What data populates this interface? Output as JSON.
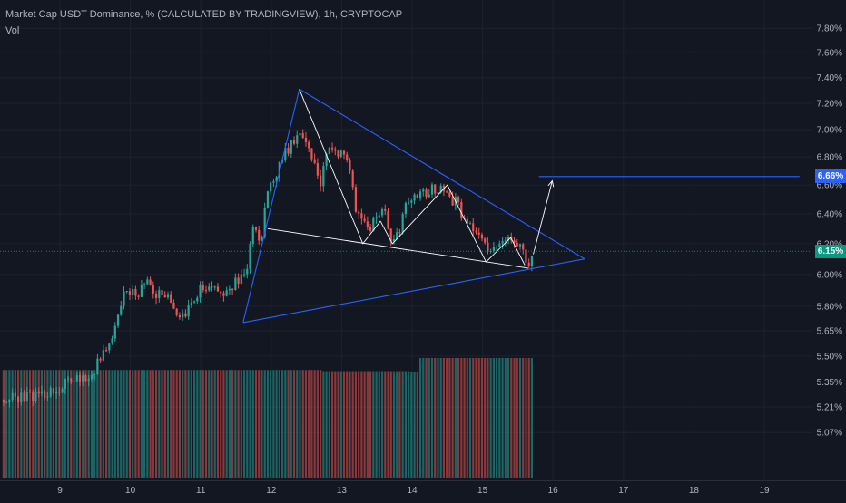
{
  "header": {
    "symbol_line": "Market Cap USDT Dominance, % (CALCULATED BY TRADINGVIEW), 1h, CRYPTOCAP",
    "volume_label": "Vol"
  },
  "price_tags": {
    "target": {
      "label": "6.66%",
      "color": "#2962ff"
    },
    "last": {
      "label": "6.15%",
      "color": "#089981"
    }
  },
  "colors": {
    "background": "#131722",
    "grid": "#1e222d",
    "up": "#26a69a",
    "down": "#ef5350",
    "trend_lines": "#2962ff",
    "pattern_lines": "#ffffff"
  },
  "chart_data": {
    "type": "candlestick",
    "title": "Market Cap USDT Dominance, % (CALCULATED BY TRADINGVIEW), 1h, CRYPTOCAP",
    "y_axis": {
      "unit": "%",
      "scale": "log",
      "range": [
        4.95,
        7.9
      ],
      "tick_labels": [
        "7.80%",
        "7.60%",
        "7.40%",
        "7.20%",
        "7.00%",
        "6.80%",
        "6.60%",
        "6.40%",
        "6.20%",
        "6.00%",
        "5.80%",
        "5.65%",
        "5.50%",
        "5.35%",
        "5.21%",
        "5.07%"
      ]
    },
    "x_axis": {
      "tick_labels": [
        "9",
        "10",
        "11",
        "12",
        "13",
        "14",
        "15",
        "16",
        "17",
        "18",
        "19"
      ],
      "range_days": [
        8.2,
        19.5
      ]
    },
    "price_path": [
      [
        8.2,
        5.25
      ],
      [
        8.4,
        5.26
      ],
      [
        8.6,
        5.27
      ],
      [
        8.8,
        5.29
      ],
      [
        9.0,
        5.31
      ],
      [
        9.2,
        5.38
      ],
      [
        9.4,
        5.36
      ],
      [
        9.6,
        5.5
      ],
      [
        9.75,
        5.62
      ],
      [
        9.9,
        5.86
      ],
      [
        10.1,
        5.88
      ],
      [
        10.25,
        5.96
      ],
      [
        10.35,
        5.82
      ],
      [
        10.45,
        5.9
      ],
      [
        10.6,
        5.8
      ],
      [
        10.75,
        5.72
      ],
      [
        10.9,
        5.84
      ],
      [
        11.0,
        5.92
      ],
      [
        11.15,
        5.9
      ],
      [
        11.35,
        5.88
      ],
      [
        11.5,
        5.95
      ],
      [
        11.65,
        6.0
      ],
      [
        11.75,
        6.36
      ],
      [
        11.85,
        6.21
      ],
      [
        11.95,
        6.56
      ],
      [
        12.05,
        6.63
      ],
      [
        12.15,
        6.8
      ],
      [
        12.3,
        6.9
      ],
      [
        12.4,
        7.02
      ],
      [
        12.55,
        6.85
      ],
      [
        12.7,
        6.61
      ],
      [
        12.8,
        6.88
      ],
      [
        12.9,
        6.82
      ],
      [
        13.05,
        6.86
      ],
      [
        13.2,
        6.44
      ],
      [
        13.3,
        6.36
      ],
      [
        13.4,
        6.3
      ],
      [
        13.5,
        6.37
      ],
      [
        13.6,
        6.42
      ],
      [
        13.7,
        6.24
      ],
      [
        13.8,
        6.27
      ],
      [
        13.95,
        6.5
      ],
      [
        14.1,
        6.52
      ],
      [
        14.25,
        6.56
      ],
      [
        14.45,
        6.59
      ],
      [
        14.55,
        6.5
      ],
      [
        14.65,
        6.47
      ],
      [
        14.75,
        6.34
      ],
      [
        14.9,
        6.27
      ],
      [
        15.0,
        6.21
      ],
      [
        15.1,
        6.16
      ],
      [
        15.2,
        6.18
      ],
      [
        15.3,
        6.25
      ],
      [
        15.4,
        6.23
      ],
      [
        15.5,
        6.22
      ],
      [
        15.6,
        6.1
      ],
      [
        15.67,
        6.08
      ],
      [
        15.72,
        6.15
      ]
    ],
    "volume": {
      "segments": [
        {
          "from_day": 8.2,
          "to_day": 12.7,
          "level": 0.9
        },
        {
          "from_day": 12.7,
          "to_day": 13.95,
          "level": 0.89
        },
        {
          "from_day": 13.95,
          "to_day": 14.1,
          "level": 0.88
        },
        {
          "from_day": 14.1,
          "to_day": 15.72,
          "level": 1.0
        }
      ]
    },
    "drawings": {
      "blue_upper_trendline": [
        [
          12.4,
          7.31
        ],
        [
          16.45,
          6.1
        ]
      ],
      "blue_lower_trendline": [
        [
          11.6,
          5.7
        ],
        [
          16.45,
          6.1
        ]
      ],
      "blue_left_edge": [
        [
          11.6,
          5.7
        ],
        [
          12.4,
          7.31
        ]
      ],
      "blue_target_line": {
        "from_day": 15.8,
        "to_day": 19.5,
        "price": 6.66
      },
      "white_lower_line": [
        [
          11.95,
          6.3
        ],
        [
          15.65,
          6.04
        ]
      ],
      "white_zigzag": [
        [
          12.4,
          7.31
        ],
        [
          13.3,
          6.2
        ],
        [
          13.55,
          6.35
        ],
        [
          13.72,
          6.2
        ],
        [
          14.5,
          6.6
        ],
        [
          15.05,
          6.08
        ],
        [
          15.4,
          6.24
        ],
        [
          15.6,
          6.06
        ]
      ],
      "white_projection_arrow": [
        [
          15.72,
          6.13
        ],
        [
          15.99,
          6.63
        ]
      ]
    }
  }
}
